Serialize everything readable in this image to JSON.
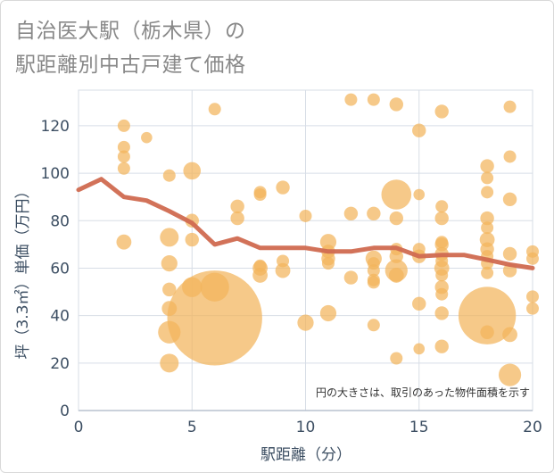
{
  "title_lines": [
    "自治医大駅（栃木県）の",
    "駅距離別中古戸建て価格"
  ],
  "chart_data": {
    "type": "scatter",
    "title": "自治医大駅（栃木県）の駅距離別中古戸建て価格",
    "xlabel": "駅距離（分）",
    "ylabel": "坪（3.3㎡）単価（万円）",
    "xlim": [
      0,
      20
    ],
    "ylim": [
      0,
      135
    ],
    "xticks": [
      0,
      5,
      10,
      15,
      20
    ],
    "yticks": [
      0,
      20,
      40,
      60,
      80,
      100,
      120
    ],
    "grid": true,
    "annotation": "円の大きさは、取引のあった物件面積を示す",
    "colors": {
      "bubble": "#f2b45c",
      "line": "#d06a50",
      "axis_text": "#3d4f63",
      "grid": "#d7dde6"
    },
    "points": [
      {
        "x": 2,
        "y": 120,
        "s": 1
      },
      {
        "x": 2,
        "y": 111,
        "s": 1
      },
      {
        "x": 2,
        "y": 107,
        "s": 1
      },
      {
        "x": 2,
        "y": 102,
        "s": 1
      },
      {
        "x": 2,
        "y": 71,
        "s": 1.2
      },
      {
        "x": 3,
        "y": 115,
        "s": 0.9
      },
      {
        "x": 4,
        "y": 99,
        "s": 1
      },
      {
        "x": 4,
        "y": 73,
        "s": 1.5
      },
      {
        "x": 4,
        "y": 62,
        "s": 1.3
      },
      {
        "x": 4,
        "y": 51,
        "s": 1.1
      },
      {
        "x": 4,
        "y": 43,
        "s": 1.2
      },
      {
        "x": 4,
        "y": 33,
        "s": 1.8
      },
      {
        "x": 4,
        "y": 20,
        "s": 1.5
      },
      {
        "x": 5,
        "y": 101,
        "s": 1.4
      },
      {
        "x": 5,
        "y": 80,
        "s": 1.1
      },
      {
        "x": 5,
        "y": 72,
        "s": 1.1
      },
      {
        "x": 5,
        "y": 52,
        "s": 1.6
      },
      {
        "x": 6,
        "y": 127,
        "s": 1
      },
      {
        "x": 6,
        "y": 52,
        "s": 2.3
      },
      {
        "x": 6,
        "y": 39,
        "s": 7.6
      },
      {
        "x": 7,
        "y": 86,
        "s": 1.1
      },
      {
        "x": 7,
        "y": 81,
        "s": 1.1
      },
      {
        "x": 8,
        "y": 92,
        "s": 1
      },
      {
        "x": 8,
        "y": 91,
        "s": 1
      },
      {
        "x": 8,
        "y": 61,
        "s": 1
      },
      {
        "x": 8,
        "y": 60,
        "s": 1.2
      },
      {
        "x": 8,
        "y": 57,
        "s": 1.2
      },
      {
        "x": 9,
        "y": 94,
        "s": 1.1
      },
      {
        "x": 9,
        "y": 63,
        "s": 1
      },
      {
        "x": 9,
        "y": 59,
        "s": 1.2
      },
      {
        "x": 10,
        "y": 82,
        "s": 1
      },
      {
        "x": 10,
        "y": 37,
        "s": 1.3
      },
      {
        "x": 11,
        "y": 71,
        "s": 1.3
      },
      {
        "x": 11,
        "y": 67,
        "s": 1.1
      },
      {
        "x": 11,
        "y": 64,
        "s": 1.1
      },
      {
        "x": 11,
        "y": 62,
        "s": 1
      },
      {
        "x": 11,
        "y": 41,
        "s": 1.3
      },
      {
        "x": 12,
        "y": 131,
        "s": 1
      },
      {
        "x": 12,
        "y": 83,
        "s": 1.1
      },
      {
        "x": 12,
        "y": 56,
        "s": 1.1
      },
      {
        "x": 13,
        "y": 131,
        "s": 1
      },
      {
        "x": 13,
        "y": 83,
        "s": 1.1
      },
      {
        "x": 13,
        "y": 64,
        "s": 1.3
      },
      {
        "x": 13,
        "y": 62,
        "s": 1
      },
      {
        "x": 13,
        "y": 59,
        "s": 1
      },
      {
        "x": 13,
        "y": 55,
        "s": 1
      },
      {
        "x": 13,
        "y": 54,
        "s": 1
      },
      {
        "x": 13,
        "y": 36,
        "s": 1
      },
      {
        "x": 14,
        "y": 129,
        "s": 1.1
      },
      {
        "x": 14,
        "y": 91,
        "s": 2.4
      },
      {
        "x": 14,
        "y": 81,
        "s": 1.1
      },
      {
        "x": 14,
        "y": 68,
        "s": 1
      },
      {
        "x": 14,
        "y": 65,
        "s": 1.1
      },
      {
        "x": 14,
        "y": 59,
        "s": 1.8
      },
      {
        "x": 14,
        "y": 57,
        "s": 1.2
      },
      {
        "x": 14,
        "y": 22,
        "s": 1
      },
      {
        "x": 15,
        "y": 118,
        "s": 1.1
      },
      {
        "x": 15,
        "y": 91,
        "s": 0.9
      },
      {
        "x": 15,
        "y": 68,
        "s": 1
      },
      {
        "x": 15,
        "y": 65,
        "s": 1.1
      },
      {
        "x": 15,
        "y": 45,
        "s": 1.1
      },
      {
        "x": 15,
        "y": 26,
        "s": 0.9
      },
      {
        "x": 16,
        "y": 126,
        "s": 1.1
      },
      {
        "x": 16,
        "y": 86,
        "s": 1
      },
      {
        "x": 16,
        "y": 81,
        "s": 1.1
      },
      {
        "x": 16,
        "y": 71,
        "s": 1
      },
      {
        "x": 16,
        "y": 70,
        "s": 1.1
      },
      {
        "x": 16,
        "y": 66,
        "s": 1.1
      },
      {
        "x": 16,
        "y": 63,
        "s": 1
      },
      {
        "x": 16,
        "y": 60,
        "s": 1.2
      },
      {
        "x": 16,
        "y": 57,
        "s": 1
      },
      {
        "x": 16,
        "y": 52,
        "s": 1.1
      },
      {
        "x": 16,
        "y": 49,
        "s": 1
      },
      {
        "x": 16,
        "y": 41,
        "s": 1.1
      },
      {
        "x": 16,
        "y": 27,
        "s": 1.1
      },
      {
        "x": 18,
        "y": 103,
        "s": 1.1
      },
      {
        "x": 18,
        "y": 98,
        "s": 1
      },
      {
        "x": 18,
        "y": 92,
        "s": 1
      },
      {
        "x": 18,
        "y": 81,
        "s": 1.1
      },
      {
        "x": 18,
        "y": 77,
        "s": 1
      },
      {
        "x": 18,
        "y": 72,
        "s": 1.2
      },
      {
        "x": 18,
        "y": 68,
        "s": 1.1
      },
      {
        "x": 18,
        "y": 65,
        "s": 1
      },
      {
        "x": 18,
        "y": 62,
        "s": 1
      },
      {
        "x": 18,
        "y": 58,
        "s": 1
      },
      {
        "x": 18,
        "y": 40,
        "s": 4.6
      },
      {
        "x": 18,
        "y": 33,
        "s": 1.1
      },
      {
        "x": 19,
        "y": 128,
        "s": 1
      },
      {
        "x": 19,
        "y": 107,
        "s": 1
      },
      {
        "x": 19,
        "y": 89,
        "s": 1.1
      },
      {
        "x": 19,
        "y": 66,
        "s": 1.1
      },
      {
        "x": 19,
        "y": 59,
        "s": 1.1
      },
      {
        "x": 19,
        "y": 32,
        "s": 1.2
      },
      {
        "x": 19,
        "y": 15,
        "s": 1.8
      },
      {
        "x": 20,
        "y": 67,
        "s": 1
      },
      {
        "x": 20,
        "y": 64,
        "s": 1
      },
      {
        "x": 20,
        "y": 48,
        "s": 1
      },
      {
        "x": 20,
        "y": 43,
        "s": 1
      }
    ],
    "trend": {
      "x": [
        0,
        1,
        2,
        3,
        4,
        5,
        6,
        7,
        8,
        9,
        10,
        11,
        12,
        13,
        14,
        15,
        16,
        17,
        18,
        19,
        20
      ],
      "y": [
        93,
        97.5,
        90,
        88.5,
        84,
        79,
        70,
        72.5,
        68.5,
        68.5,
        68.5,
        67,
        67,
        68.5,
        68.5,
        65,
        65.5,
        65.5,
        63.5,
        61.5,
        60
      ]
    }
  }
}
